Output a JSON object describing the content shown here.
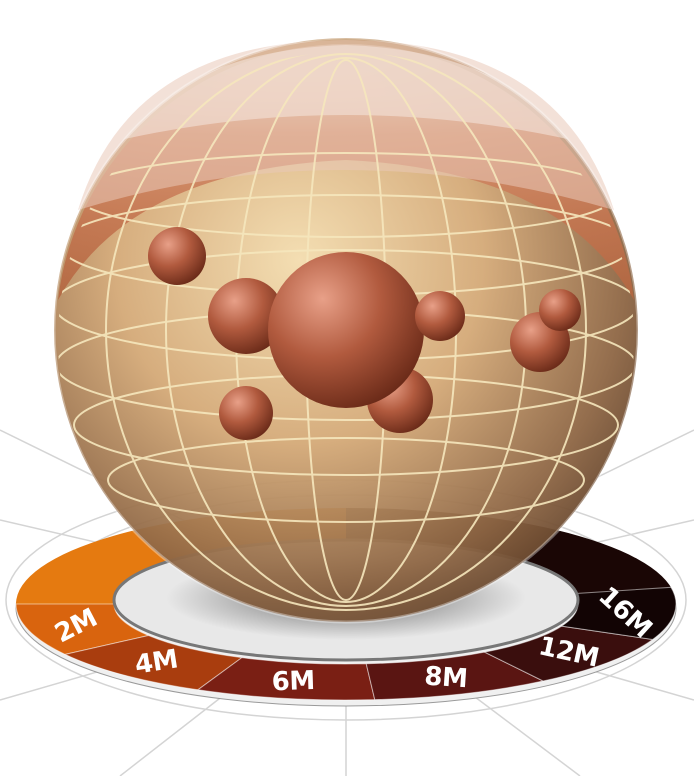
{
  "scale_ring": {
    "segments": [
      {
        "label": "2M",
        "color": "#d9640e"
      },
      {
        "label": "4M",
        "color": "#a93d0e"
      },
      {
        "label": "6M",
        "color": "#7a1f14"
      },
      {
        "label": "8M",
        "color": "#5a1512"
      },
      {
        "label": "12M",
        "color": "#3a0e0d"
      },
      {
        "label": "16M",
        "color": "#120404"
      }
    ]
  },
  "colors": {
    "sphere_top": "#c0694a",
    "sphere_band": "#d7b07b",
    "bubble": "#a8533a",
    "grid_line": "#f5e6b8",
    "floor_line": "#cfcfcf",
    "ring_inner_shadow": "#8a8a8a"
  }
}
